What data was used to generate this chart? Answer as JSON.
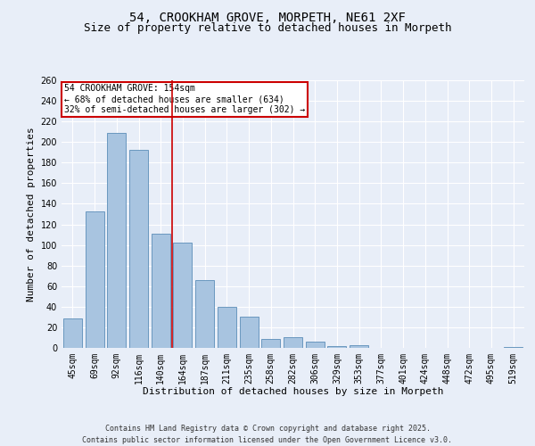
{
  "title": "54, CROOKHAM GROVE, MORPETH, NE61 2XF",
  "subtitle": "Size of property relative to detached houses in Morpeth",
  "xlabel": "Distribution of detached houses by size in Morpeth",
  "ylabel": "Number of detached properties",
  "categories": [
    "45sqm",
    "69sqm",
    "92sqm",
    "116sqm",
    "140sqm",
    "164sqm",
    "187sqm",
    "211sqm",
    "235sqm",
    "258sqm",
    "282sqm",
    "306sqm",
    "329sqm",
    "353sqm",
    "377sqm",
    "401sqm",
    "424sqm",
    "448sqm",
    "472sqm",
    "495sqm",
    "519sqm"
  ],
  "values": [
    29,
    133,
    209,
    192,
    111,
    102,
    66,
    40,
    30,
    9,
    10,
    6,
    2,
    3,
    0,
    0,
    0,
    0,
    0,
    0,
    1
  ],
  "bar_color": "#a8c4e0",
  "bar_edgecolor": "#5b8db8",
  "property_line_index": 4.5,
  "annotation_text": "54 CROOKHAM GROVE: 154sqm\n← 68% of detached houses are smaller (634)\n32% of semi-detached houses are larger (302) →",
  "annotation_box_color": "#ffffff",
  "annotation_box_edgecolor": "#cc0000",
  "line_color": "#cc0000",
  "ylim": [
    0,
    260
  ],
  "yticks": [
    0,
    20,
    40,
    60,
    80,
    100,
    120,
    140,
    160,
    180,
    200,
    220,
    240,
    260
  ],
  "background_color": "#e8eef8",
  "footer_line1": "Contains HM Land Registry data © Crown copyright and database right 2025.",
  "footer_line2": "Contains public sector information licensed under the Open Government Licence v3.0.",
  "title_fontsize": 10,
  "subtitle_fontsize": 9,
  "label_fontsize": 8,
  "tick_fontsize": 7,
  "footer_fontsize": 6
}
